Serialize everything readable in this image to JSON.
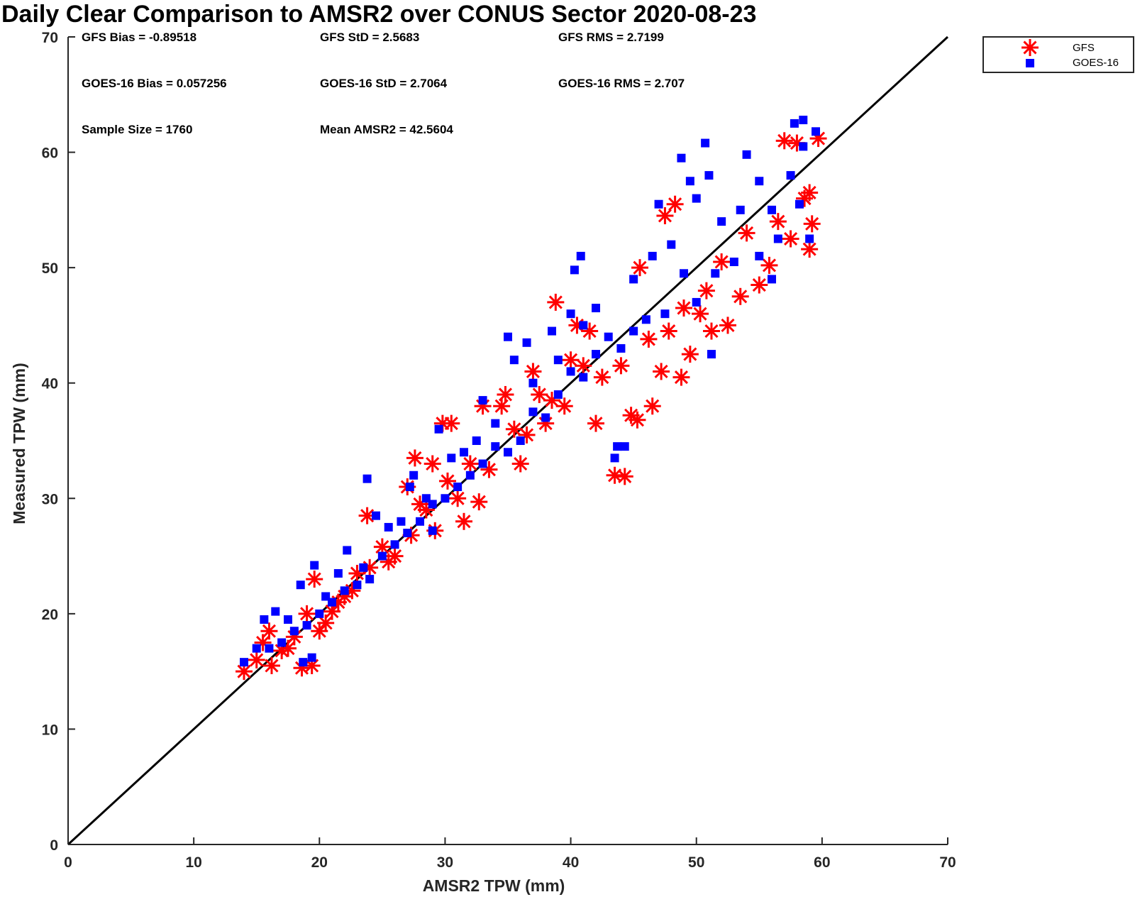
{
  "chart_data": {
    "type": "scatter",
    "title": "Daily Clear Comparison to AMSR2 over CONUS Sector 2020-08-23",
    "xlabel": "AMSR2 TPW (mm)",
    "ylabel": "Measured TPW (mm)",
    "xlim": [
      0,
      70
    ],
    "ylim": [
      0,
      70
    ],
    "xticks": [
      "0",
      "10",
      "20",
      "30",
      "40",
      "50",
      "60",
      "70"
    ],
    "yticks": [
      "0",
      "10",
      "20",
      "30",
      "40",
      "50",
      "60",
      "70"
    ],
    "legend_position": "outside-top-right",
    "grid": false,
    "reference_line": {
      "from": [
        0,
        0
      ],
      "to": [
        70,
        70
      ],
      "color": "#000000"
    },
    "stats": {
      "gfs_bias": "GFS Bias = -0.89518",
      "gfs_std": "GFS StD = 2.5683",
      "gfs_rms": "GFS RMS = 2.7199",
      "goes_bias": "GOES-16 Bias = 0.057256",
      "goes_std": "GOES-16 StD = 2.7064",
      "goes_rms": "GOES-16 RMS = 2.707",
      "sample_size": "Sample Size = 1760",
      "mean_amsr2": "Mean AMSR2 = 42.5604"
    },
    "series": [
      {
        "name": "GFS",
        "marker": "asterisk",
        "color": "#ff0000",
        "points": [
          [
            14.0,
            15.0
          ],
          [
            15.0,
            16.0
          ],
          [
            16.2,
            15.5
          ],
          [
            17.5,
            17.0
          ],
          [
            18.6,
            15.3
          ],
          [
            19.4,
            15.5
          ],
          [
            19.6,
            23.0
          ],
          [
            20.5,
            19.2
          ],
          [
            21.5,
            21.0
          ],
          [
            22.6,
            22.0
          ],
          [
            23.8,
            28.5
          ],
          [
            25.5,
            24.5
          ],
          [
            27.3,
            26.8
          ],
          [
            27.6,
            33.5
          ],
          [
            28.5,
            29.0
          ],
          [
            29.2,
            27.2
          ],
          [
            29.8,
            36.5
          ],
          [
            30.5,
            36.5
          ],
          [
            31.5,
            28.0
          ],
          [
            32.7,
            29.7
          ],
          [
            33.5,
            32.5
          ],
          [
            34.8,
            39.0
          ],
          [
            36.0,
            33.0
          ],
          [
            37.0,
            41.0
          ],
          [
            38.0,
            36.5
          ],
          [
            38.8,
            47.0
          ],
          [
            40.0,
            42.0
          ],
          [
            41.0,
            41.5
          ],
          [
            42.0,
            36.5
          ],
          [
            43.5,
            32.0
          ],
          [
            44.3,
            31.9
          ],
          [
            44.8,
            37.2
          ],
          [
            45.3,
            36.8
          ],
          [
            46.5,
            38.0
          ],
          [
            47.2,
            41.0
          ],
          [
            47.5,
            54.5
          ],
          [
            48.3,
            55.5
          ],
          [
            48.8,
            40.5
          ],
          [
            49.5,
            42.5
          ],
          [
            50.3,
            46.0
          ],
          [
            51.2,
            44.5
          ],
          [
            52.5,
            45.0
          ],
          [
            53.5,
            47.5
          ],
          [
            55.0,
            48.5
          ],
          [
            55.8,
            50.2
          ],
          [
            57.0,
            61.0
          ],
          [
            58.0,
            60.8
          ],
          [
            58.6,
            56.0
          ],
          [
            59.0,
            56.5
          ],
          [
            59.2,
            53.8
          ],
          [
            59.0,
            51.6
          ],
          [
            59.7,
            61.2
          ],
          [
            57.5,
            52.5
          ],
          [
            56.5,
            54.0
          ],
          [
            54.0,
            53.0
          ],
          [
            52.0,
            50.5
          ],
          [
            50.8,
            48.0
          ],
          [
            49.0,
            46.5
          ],
          [
            47.8,
            44.5
          ],
          [
            46.2,
            43.8
          ],
          [
            45.5,
            50.0
          ],
          [
            44.0,
            41.5
          ],
          [
            42.5,
            40.5
          ],
          [
            41.5,
            44.5
          ],
          [
            40.5,
            45.0
          ],
          [
            39.5,
            38.0
          ],
          [
            38.5,
            38.5
          ],
          [
            37.5,
            39.0
          ],
          [
            36.5,
            35.5
          ],
          [
            35.5,
            36.0
          ],
          [
            34.5,
            38.0
          ],
          [
            33.0,
            38.0
          ],
          [
            32.0,
            33.0
          ],
          [
            31.0,
            30.0
          ],
          [
            30.2,
            31.5
          ],
          [
            29.0,
            33.0
          ],
          [
            28.0,
            29.5
          ],
          [
            27.0,
            31.0
          ],
          [
            26.0,
            25.0
          ],
          [
            25.0,
            25.8
          ],
          [
            24.0,
            24.0
          ],
          [
            23.0,
            23.5
          ],
          [
            22.0,
            21.5
          ],
          [
            21.0,
            20.2
          ],
          [
            20.0,
            18.5
          ],
          [
            19.0,
            20.0
          ],
          [
            18.0,
            18.0
          ],
          [
            17.0,
            16.8
          ],
          [
            16.0,
            18.5
          ],
          [
            15.5,
            17.5
          ]
        ]
      },
      {
        "name": "GOES-16",
        "marker": "square",
        "color": "#0000ff",
        "points": [
          [
            14.0,
            15.8
          ],
          [
            15.0,
            17.0
          ],
          [
            15.6,
            19.5
          ],
          [
            16.5,
            20.2
          ],
          [
            17.5,
            19.5
          ],
          [
            18.5,
            22.5
          ],
          [
            18.7,
            15.8
          ],
          [
            19.4,
            16.2
          ],
          [
            19.6,
            24.2
          ],
          [
            20.5,
            21.5
          ],
          [
            21.5,
            23.5
          ],
          [
            22.2,
            25.5
          ],
          [
            23.5,
            24.0
          ],
          [
            23.8,
            31.7
          ],
          [
            24.5,
            28.5
          ],
          [
            25.5,
            27.5
          ],
          [
            26.5,
            28.0
          ],
          [
            27.2,
            31.0
          ],
          [
            27.5,
            32.0
          ],
          [
            28.5,
            30.0
          ],
          [
            29.0,
            27.2
          ],
          [
            29.5,
            36.0
          ],
          [
            30.5,
            33.5
          ],
          [
            31.5,
            34.0
          ],
          [
            32.5,
            35.0
          ],
          [
            33.0,
            38.5
          ],
          [
            34.0,
            36.5
          ],
          [
            35.0,
            44.0
          ],
          [
            35.5,
            42.0
          ],
          [
            36.5,
            43.5
          ],
          [
            37.0,
            40.0
          ],
          [
            38.5,
            44.5
          ],
          [
            39.0,
            42.0
          ],
          [
            40.0,
            46.0
          ],
          [
            40.3,
            49.8
          ],
          [
            40.8,
            51.0
          ],
          [
            41.0,
            45.0
          ],
          [
            42.0,
            46.5
          ],
          [
            43.5,
            33.5
          ],
          [
            43.7,
            34.5
          ],
          [
            44.3,
            34.5
          ],
          [
            45.0,
            49.0
          ],
          [
            46.5,
            51.0
          ],
          [
            47.0,
            55.5
          ],
          [
            48.0,
            52.0
          ],
          [
            48.8,
            59.5
          ],
          [
            49.5,
            57.5
          ],
          [
            50.0,
            56.0
          ],
          [
            50.7,
            60.8
          ],
          [
            51.0,
            58.0
          ],
          [
            51.2,
            42.5
          ],
          [
            52.0,
            54.0
          ],
          [
            53.5,
            55.0
          ],
          [
            54.0,
            59.8
          ],
          [
            55.0,
            57.5
          ],
          [
            56.0,
            55.0
          ],
          [
            56.5,
            52.5
          ],
          [
            57.8,
            62.5
          ],
          [
            58.5,
            62.8
          ],
          [
            59.5,
            61.8
          ],
          [
            58.5,
            60.5
          ],
          [
            57.5,
            58.0
          ],
          [
            58.2,
            55.5
          ],
          [
            59.0,
            52.5
          ],
          [
            56.0,
            49.0
          ],
          [
            55.0,
            51.0
          ],
          [
            53.0,
            50.5
          ],
          [
            51.5,
            49.5
          ],
          [
            50.0,
            47.0
          ],
          [
            49.0,
            49.5
          ],
          [
            47.5,
            46.0
          ],
          [
            46.0,
            45.5
          ],
          [
            45.0,
            44.5
          ],
          [
            44.0,
            43.0
          ],
          [
            43.0,
            44.0
          ],
          [
            42.0,
            42.5
          ],
          [
            41.0,
            40.5
          ],
          [
            40.0,
            41.0
          ],
          [
            39.0,
            39.0
          ],
          [
            38.0,
            37.0
          ],
          [
            37.0,
            37.5
          ],
          [
            36.0,
            35.0
          ],
          [
            35.0,
            34.0
          ],
          [
            34.0,
            34.5
          ],
          [
            33.0,
            33.0
          ],
          [
            32.0,
            32.0
          ],
          [
            31.0,
            31.0
          ],
          [
            30.0,
            30.0
          ],
          [
            29.0,
            29.5
          ],
          [
            28.0,
            28.0
          ],
          [
            27.0,
            27.0
          ],
          [
            26.0,
            26.0
          ],
          [
            25.0,
            25.0
          ],
          [
            24.0,
            23.0
          ],
          [
            23.0,
            22.5
          ],
          [
            22.0,
            22.0
          ],
          [
            21.0,
            21.0
          ],
          [
            20.0,
            20.0
          ],
          [
            19.0,
            19.0
          ],
          [
            18.0,
            18.5
          ],
          [
            17.0,
            17.5
          ],
          [
            16.0,
            17.0
          ]
        ]
      }
    ]
  }
}
